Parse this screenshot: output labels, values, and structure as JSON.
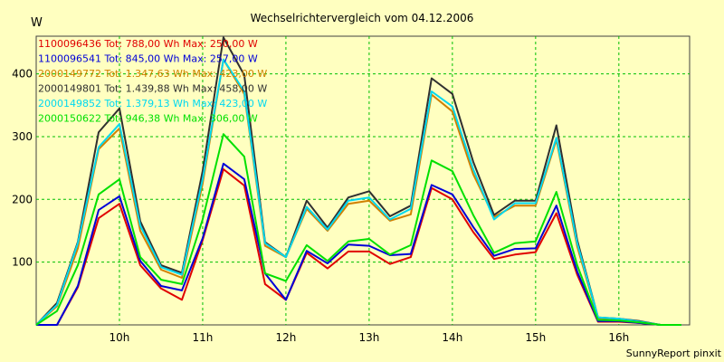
{
  "chart_data": {
    "type": "line",
    "title": "Wechselrichtervergleich vom 04.12.2006",
    "ylabel": "W",
    "footer": "SunnyReport pinxit",
    "grid": true,
    "ylim": [
      0,
      460
    ],
    "yticks": [
      100,
      200,
      300,
      400
    ],
    "xlim": [
      9.0,
      16.85
    ],
    "xticks": [
      10,
      11,
      12,
      13,
      14,
      15,
      16
    ],
    "xtick_labels": [
      "10h",
      "11h",
      "12h",
      "13h",
      "14h",
      "15h",
      "16h"
    ],
    "legend_position": "top-left",
    "x": [
      9.0,
      9.25,
      9.5,
      9.75,
      10.0,
      10.25,
      10.5,
      10.75,
      11.0,
      11.25,
      11.5,
      11.75,
      12.0,
      12.25,
      12.5,
      12.75,
      13.0,
      13.25,
      13.5,
      13.75,
      14.0,
      14.25,
      14.5,
      14.75,
      15.0,
      15.25,
      15.5,
      15.75,
      16.0,
      16.25,
      16.5,
      16.75
    ],
    "series": [
      {
        "name": "1100096436 Tot: 788,00 Wh Max: 250,00 W",
        "color": "#e00000",
        "values": [
          0,
          0,
          60,
          170,
          193,
          95,
          58,
          40,
          135,
          248,
          222,
          65,
          40,
          115,
          90,
          117,
          117,
          97,
          108,
          218,
          200,
          148,
          105,
          112,
          116,
          178,
          80,
          5,
          5,
          3,
          0,
          0
        ]
      },
      {
        "name": "1100096541 Tot: 845,00 Wh Max: 257,00 W",
        "color": "#0000d8",
        "values": [
          0,
          0,
          62,
          183,
          205,
          102,
          62,
          55,
          138,
          257,
          232,
          82,
          40,
          118,
          98,
          128,
          126,
          111,
          113,
          223,
          208,
          156,
          110,
          121,
          122,
          190,
          85,
          6,
          6,
          3,
          0,
          0
        ]
      },
      {
        "name": "2000149772 Tot: 1.347,63 Wh Max: 423,00 W",
        "color": "#d08000",
        "values": [
          0,
          30,
          122,
          280,
          313,
          150,
          88,
          75,
          225,
          423,
          368,
          126,
          108,
          185,
          150,
          193,
          198,
          166,
          176,
          367,
          340,
          240,
          172,
          190,
          190,
          295,
          125,
          10,
          9,
          5,
          0,
          0
        ]
      },
      {
        "name": "2000149801 Tot: 1.439,88 Wh Max: 458,00 W",
        "color": "#303030",
        "values": [
          0,
          35,
          132,
          307,
          345,
          165,
          95,
          83,
          245,
          458,
          398,
          132,
          108,
          198,
          155,
          203,
          213,
          173,
          190,
          393,
          368,
          260,
          175,
          198,
          198,
          318,
          135,
          12,
          10,
          6,
          0,
          0
        ]
      },
      {
        "name": "2000149852 Tot: 1.379,13 Wh Max: 423,00 W",
        "color": "#00d8f0",
        "values": [
          0,
          32,
          130,
          283,
          320,
          158,
          92,
          80,
          232,
          423,
          372,
          130,
          108,
          188,
          152,
          198,
          203,
          168,
          185,
          372,
          348,
          248,
          168,
          194,
          194,
          298,
          130,
          12,
          10,
          5,
          0,
          0
        ]
      },
      {
        "name": "2000150622 Tot: 946,38 Wh Max: 306,00 W",
        "color": "#00e000",
        "values": [
          0,
          22,
          95,
          208,
          232,
          108,
          72,
          65,
          168,
          304,
          268,
          82,
          70,
          127,
          102,
          133,
          137,
          112,
          127,
          262,
          245,
          175,
          115,
          130,
          133,
          212,
          95,
          8,
          7,
          4,
          0,
          0
        ]
      }
    ]
  }
}
